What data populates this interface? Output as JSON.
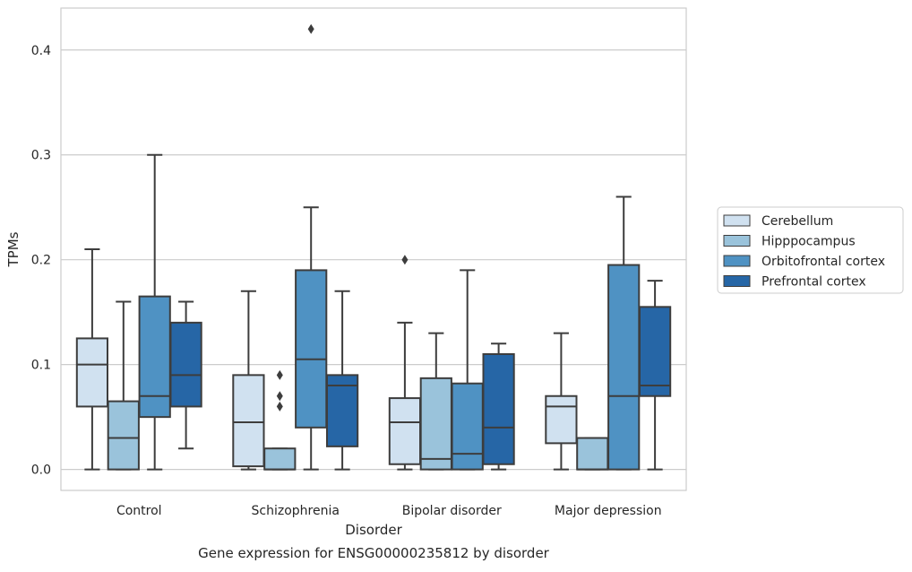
{
  "chart_data": {
    "type": "boxplot",
    "title": "Gene expression for ENSG00000235812 by disorder",
    "xlabel": "Disorder",
    "ylabel": "TPMs",
    "ylim": [
      -0.02,
      0.44
    ],
    "yticks": [
      "0.0",
      "0.1",
      "0.2",
      "0.3",
      "0.4"
    ],
    "categories": [
      "Control",
      "Schizophrenia",
      "Bipolar disorder",
      "Major depression"
    ],
    "grid": "horizontal",
    "legend_position": "right",
    "series": [
      {
        "name": "Cerebellum",
        "color": "#d0e1f0",
        "boxes": [
          {
            "whislo": 0.0,
            "q1": 0.06,
            "med": 0.1,
            "q3": 0.125,
            "whishi": 0.21,
            "fliers": []
          },
          {
            "whislo": 0.0,
            "q1": 0.003,
            "med": 0.045,
            "q3": 0.09,
            "whishi": 0.17,
            "fliers": []
          },
          {
            "whislo": 0.0,
            "q1": 0.005,
            "med": 0.045,
            "q3": 0.068,
            "whishi": 0.14,
            "fliers": [
              0.2
            ]
          },
          {
            "whislo": 0.0,
            "q1": 0.025,
            "med": 0.06,
            "q3": 0.07,
            "whishi": 0.13,
            "fliers": []
          }
        ]
      },
      {
        "name": "Hipppocampus",
        "color": "#9ac3db",
        "boxes": [
          {
            "whislo": 0.0,
            "q1": 0.0,
            "med": 0.03,
            "q3": 0.065,
            "whishi": 0.16,
            "fliers": []
          },
          {
            "whislo": 0.0,
            "q1": 0.0,
            "med": 0.0,
            "q3": 0.02,
            "whishi": 0.02,
            "fliers": [
              0.06,
              0.07,
              0.09
            ]
          },
          {
            "whislo": 0.0,
            "q1": 0.0,
            "med": 0.01,
            "q3": 0.087,
            "whishi": 0.13,
            "fliers": []
          },
          {
            "whislo": 0.0,
            "q1": 0.0,
            "med": 0.0,
            "q3": 0.03,
            "whishi": 0.03,
            "fliers": []
          }
        ]
      },
      {
        "name": "Orbitofrontal cortex",
        "color": "#4f92c3",
        "boxes": [
          {
            "whislo": 0.0,
            "q1": 0.05,
            "med": 0.07,
            "q3": 0.165,
            "whishi": 0.3,
            "fliers": []
          },
          {
            "whislo": 0.0,
            "q1": 0.04,
            "med": 0.105,
            "q3": 0.19,
            "whishi": 0.25,
            "fliers": [
              0.42
            ]
          },
          {
            "whislo": 0.0,
            "q1": 0.0,
            "med": 0.015,
            "q3": 0.082,
            "whishi": 0.19,
            "fliers": []
          },
          {
            "whislo": 0.0,
            "q1": 0.0,
            "med": 0.07,
            "q3": 0.195,
            "whishi": 0.26,
            "fliers": []
          }
        ]
      },
      {
        "name": "Prefrontal cortex",
        "color": "#2666a6",
        "boxes": [
          {
            "whislo": 0.02,
            "q1": 0.06,
            "med": 0.09,
            "q3": 0.14,
            "whishi": 0.16,
            "fliers": []
          },
          {
            "whislo": 0.0,
            "q1": 0.022,
            "med": 0.08,
            "q3": 0.09,
            "whishi": 0.17,
            "fliers": []
          },
          {
            "whislo": 0.0,
            "q1": 0.005,
            "med": 0.04,
            "q3": 0.11,
            "whishi": 0.12,
            "fliers": []
          },
          {
            "whislo": 0.0,
            "q1": 0.07,
            "med": 0.08,
            "q3": 0.155,
            "whishi": 0.18,
            "fliers": []
          }
        ]
      }
    ]
  }
}
